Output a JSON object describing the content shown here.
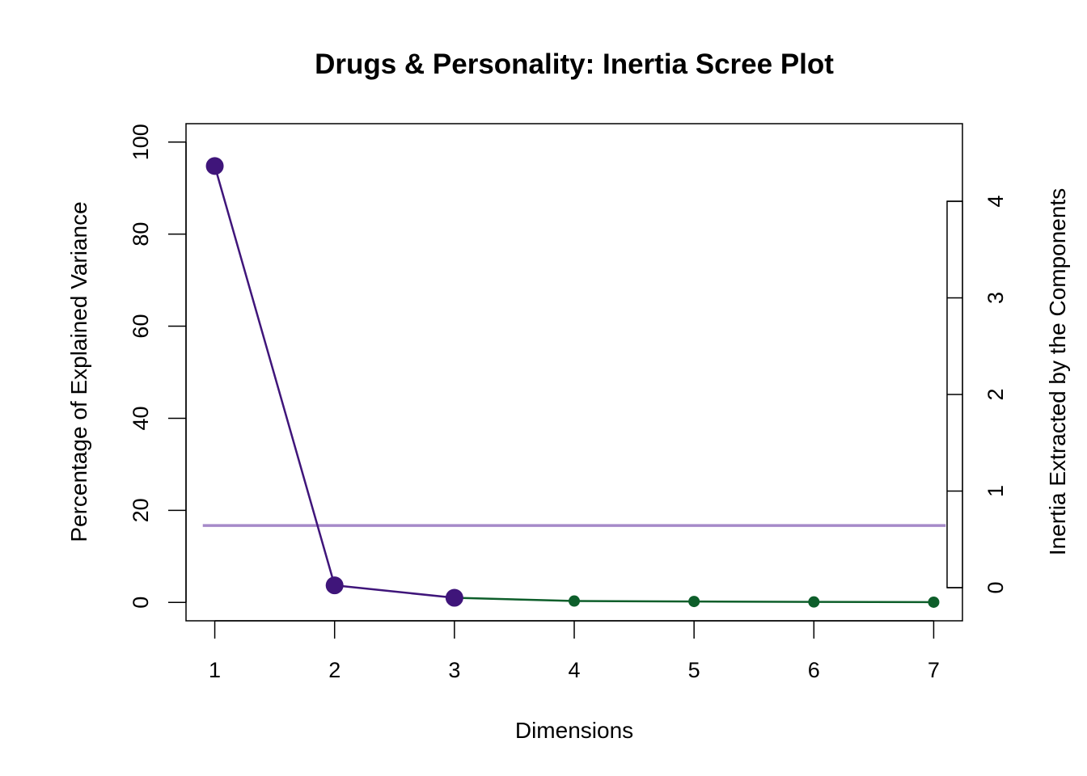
{
  "chart_data": {
    "type": "line",
    "title": "Drugs & Personality: Inertia Scree Plot",
    "xlabel": "Dimensions",
    "ylabel": "Percentage of Explained Variance",
    "ylabel_right": "Inertia Extracted by the Components",
    "x": [
      1,
      2,
      3,
      4,
      5,
      6,
      7
    ],
    "x_ticks": [
      "1",
      "2",
      "3",
      "4",
      "5",
      "6",
      "7"
    ],
    "y_ticks": [
      "0",
      "20",
      "40",
      "60",
      "80",
      "100"
    ],
    "y_right_ticks": [
      "0",
      "1",
      "2",
      "3",
      "4"
    ],
    "xlim": [
      0.76,
      7.24
    ],
    "ylim": [
      -4,
      104
    ],
    "ylim_right": [
      0,
      4
    ],
    "series": [
      {
        "values": [
          94.8,
          3.7,
          1.0,
          0.3,
          0.2,
          0.1,
          0.05
        ]
      }
    ],
    "significant_dims": 3,
    "reference_line_y": 16.7,
    "grid": false,
    "legend": "none",
    "colors": {
      "significant": "#3f157a",
      "nonsignificant": "#0d5e2a",
      "reference": "#a68ac9"
    }
  }
}
